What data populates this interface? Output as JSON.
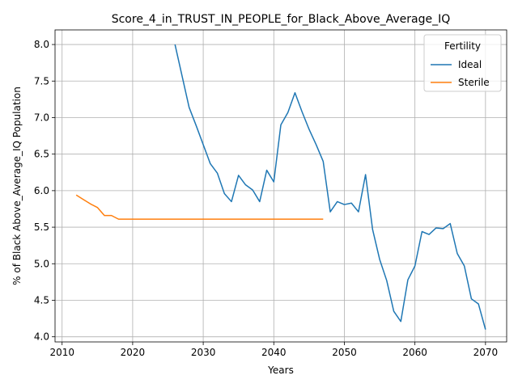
{
  "chart_data": {
    "type": "line",
    "title": "Score_4_in_TRUST_IN_PEOPLE_for_Black_Above_Average_IQ",
    "xlabel": "Years",
    "ylabel": "% of Black Above_Average_IQ Population",
    "xlim": [
      2009,
      2073
    ],
    "ylim": [
      3.93,
      8.2
    ],
    "xticks": [
      2010,
      2020,
      2030,
      2040,
      2050,
      2060,
      2070
    ],
    "yticks": [
      4.0,
      4.5,
      5.0,
      5.5,
      6.0,
      6.5,
      7.0,
      7.5,
      8.0
    ],
    "grid": true,
    "legend": {
      "title": "Fertility",
      "placement": "top-right"
    },
    "series": [
      {
        "name": "Ideal",
        "color": "#1f77b4",
        "x": [
          2026,
          2027,
          2028,
          2029,
          2030,
          2031,
          2032,
          2033,
          2034,
          2035,
          2036,
          2037,
          2038,
          2039,
          2040,
          2041,
          2042,
          2043,
          2044,
          2045,
          2046,
          2047,
          2048,
          2049,
          2050,
          2051,
          2052,
          2053,
          2054,
          2055,
          2056,
          2057,
          2058,
          2059,
          2060,
          2061,
          2062,
          2063,
          2064,
          2065,
          2066,
          2067,
          2068,
          2069,
          2070
        ],
        "y": [
          8.0,
          7.57,
          7.14,
          6.89,
          6.63,
          6.37,
          6.24,
          5.96,
          5.85,
          6.21,
          6.08,
          6.01,
          5.85,
          6.28,
          6.12,
          6.9,
          7.07,
          7.34,
          7.08,
          6.84,
          6.63,
          6.4,
          5.71,
          5.85,
          5.81,
          5.83,
          5.71,
          6.22,
          5.47,
          5.06,
          4.77,
          4.35,
          4.21,
          4.78,
          4.97,
          5.44,
          5.4,
          5.49,
          5.48,
          5.55,
          5.14,
          4.97,
          4.52,
          4.45,
          4.1
        ]
      },
      {
        "name": "Sterile",
        "color": "#ff7f0e",
        "x": [
          2012,
          2013,
          2014,
          2015,
          2016,
          2017,
          2018,
          2019,
          2020,
          2025,
          2030,
          2035,
          2040,
          2045,
          2047
        ],
        "y": [
          5.94,
          5.88,
          5.82,
          5.77,
          5.66,
          5.66,
          5.61,
          5.61,
          5.61,
          5.61,
          5.61,
          5.61,
          5.61,
          5.61,
          5.61
        ]
      }
    ]
  }
}
